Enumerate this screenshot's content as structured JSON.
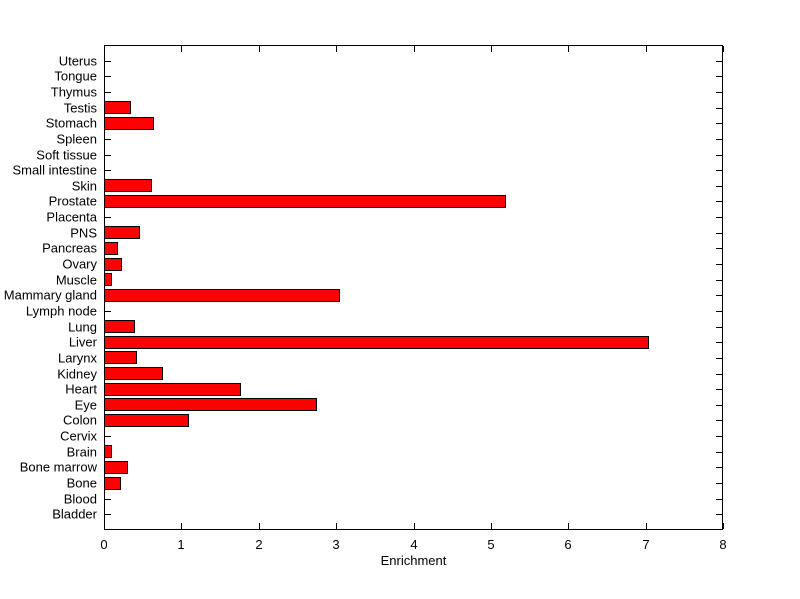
{
  "figure": {
    "background_color": "#ffffff",
    "text_color": "#000000",
    "axis_color": "#000000"
  },
  "chart_data": {
    "type": "bar",
    "orientation": "horizontal",
    "title": "",
    "xlabel": "Enrichment",
    "ylabel": "",
    "xlim": [
      0,
      8
    ],
    "xticks": [
      "0",
      "1",
      "2",
      "3",
      "4",
      "5",
      "6",
      "7",
      "8"
    ],
    "grid": false,
    "legend": "none",
    "bar_color": "#ff0000",
    "bar_border_color": "#000000",
    "categories_order": "top-to-bottom",
    "categories": [
      "Uterus",
      "Tongue",
      "Thymus",
      "Testis",
      "Stomach",
      "Spleen",
      "Soft tissue",
      "Small intestine",
      "Skin",
      "Prostate",
      "Placenta",
      "PNS",
      "Pancreas",
      "Ovary",
      "Muscle",
      "Mammary gland",
      "Lymph node",
      "Lung",
      "Liver",
      "Larynx",
      "Kidney",
      "Heart",
      "Eye",
      "Colon",
      "Cervix",
      "Brain",
      "Bone marrow",
      "Bone",
      "Blood",
      "Bladder"
    ],
    "values": [
      0,
      0,
      0,
      0.35,
      0.65,
      0,
      0,
      0,
      0.62,
      5.2,
      0,
      0.46,
      0.18,
      0.23,
      0.1,
      3.05,
      0,
      0.4,
      7.05,
      0.43,
      0.76,
      1.77,
      2.75,
      1.1,
      0,
      0.1,
      0.31,
      0.22,
      0,
      0
    ]
  }
}
